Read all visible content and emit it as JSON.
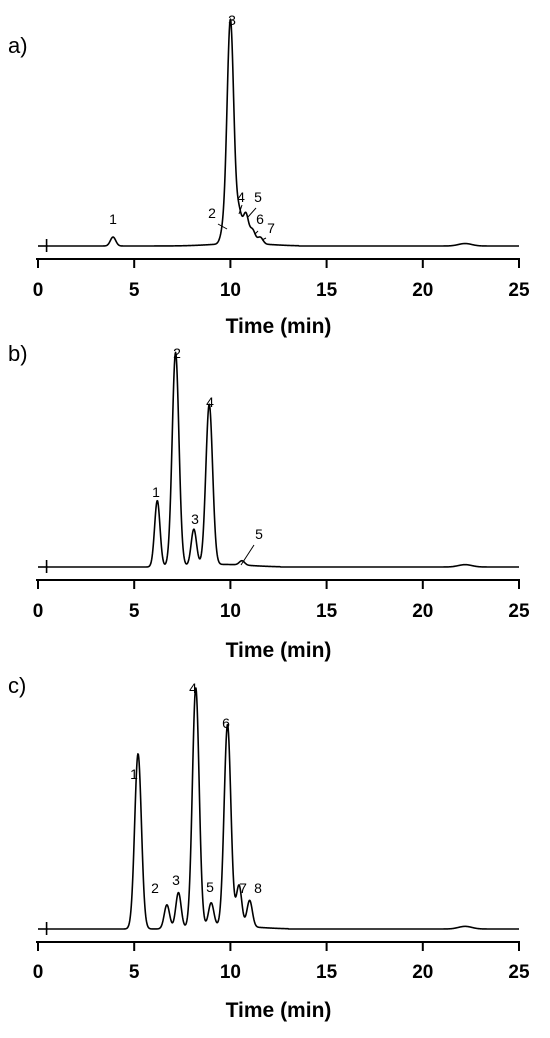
{
  "chart_data": [
    {
      "type": "line",
      "panel_label": "a)",
      "xlabel": "Time (min)",
      "ylabel": "",
      "xlim": [
        0,
        25
      ],
      "xticks": [
        0,
        5,
        10,
        15,
        20,
        25
      ],
      "y_axis_shown": false,
      "injection_mark_min": 0.55,
      "baseline_level": 0.1,
      "series": [
        {
          "peaks": [
            {
              "label": "1",
              "time": 3.9,
              "height": 4
            },
            {
              "label": "2",
              "time": 9.6,
              "height": 4
            },
            {
              "label": "3",
              "time": 10.0,
              "height": 100
            },
            {
              "label": "4",
              "time": 10.45,
              "height": 13
            },
            {
              "label": "5",
              "time": 10.8,
              "height": 13
            },
            {
              "label": "6",
              "time": 11.15,
              "height": 6
            },
            {
              "label": "7",
              "time": 11.55,
              "height": 3
            }
          ]
        }
      ]
    },
    {
      "type": "line",
      "panel_label": "b)",
      "xlabel": "Time (min)",
      "ylabel": "",
      "xlim": [
        0,
        25
      ],
      "xticks": [
        0,
        5,
        10,
        15,
        20,
        25
      ],
      "y_axis_shown": false,
      "injection_mark_min": 0.55,
      "baseline_level": 0.1,
      "series": [
        {
          "peaks": [
            {
              "label": "1",
              "time": 6.2,
              "height": 31
            },
            {
              "label": "2",
              "time": 7.15,
              "height": 100
            },
            {
              "label": "3",
              "time": 8.1,
              "height": 17
            },
            {
              "label": "4",
              "time": 8.9,
              "height": 75
            },
            {
              "label": "5",
              "time": 10.6,
              "height": 2
            }
          ]
        }
      ]
    },
    {
      "type": "line",
      "panel_label": "c)",
      "xlabel": "Time (min)",
      "ylabel": "",
      "xlim": [
        0,
        25
      ],
      "xticks": [
        0,
        5,
        10,
        15,
        20,
        25
      ],
      "y_axis_shown": false,
      "injection_mark_min": 0.55,
      "baseline_level": 0.1,
      "series": [
        {
          "peaks": [
            {
              "label": "1",
              "time": 5.2,
              "height": 73
            },
            {
              "label": "2",
              "time": 6.7,
              "height": 10
            },
            {
              "label": "3",
              "time": 7.3,
              "height": 15
            },
            {
              "label": "4",
              "time": 8.2,
              "height": 100
            },
            {
              "label": "5",
              "time": 9.0,
              "height": 10
            },
            {
              "label": "6",
              "time": 9.85,
              "height": 84
            },
            {
              "label": "7",
              "time": 10.45,
              "height": 17
            },
            {
              "label": "8",
              "time": 11.0,
              "height": 11
            }
          ]
        }
      ]
    }
  ]
}
